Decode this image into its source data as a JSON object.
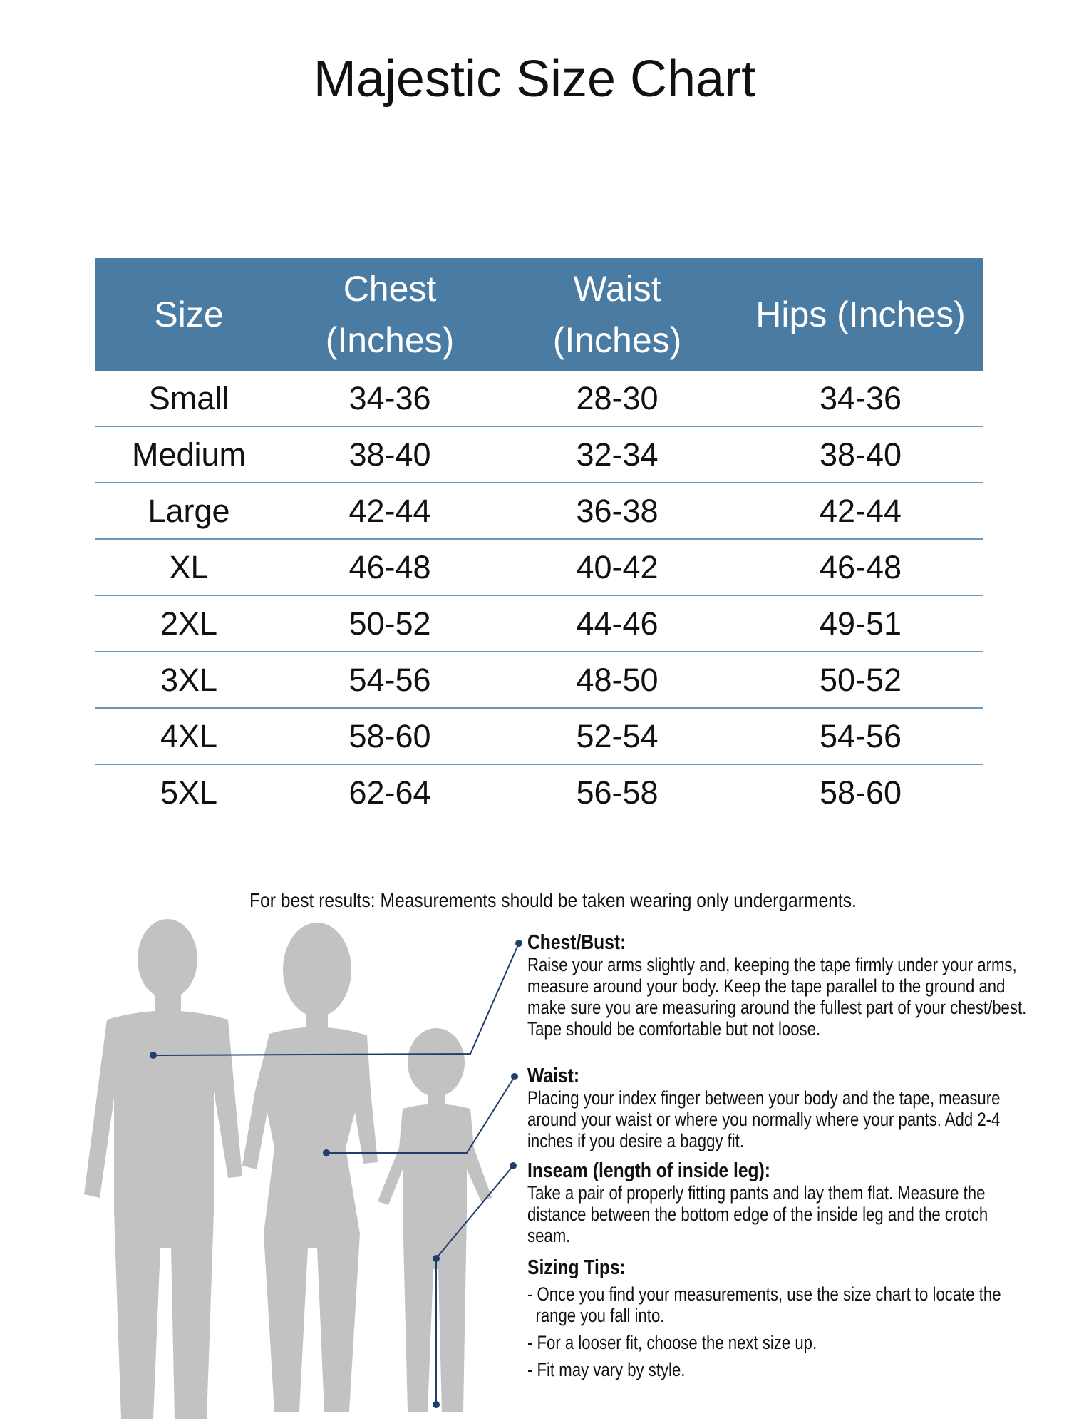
{
  "title": "Majestic Size Chart",
  "table": {
    "headers": {
      "size": "Size",
      "chest_1": "Chest",
      "chest_2": "(Inches)",
      "waist_1": "Waist",
      "waist_2": "(Inches)",
      "hips": "Hips (Inches)"
    },
    "rows": [
      {
        "size": "Small",
        "chest": "34-36",
        "waist": "28-30",
        "hips": "34-36"
      },
      {
        "size": "Medium",
        "chest": "38-40",
        "waist": "32-34",
        "hips": "38-40"
      },
      {
        "size": "Large",
        "chest": "42-44",
        "waist": "36-38",
        "hips": "42-44"
      },
      {
        "size": "XL",
        "chest": "46-48",
        "waist": "40-42",
        "hips": "46-48"
      },
      {
        "size": "2XL",
        "chest": "50-52",
        "waist": "44-46",
        "hips": "49-51"
      },
      {
        "size": "3XL",
        "chest": "54-56",
        "waist": "48-50",
        "hips": "50-52"
      },
      {
        "size": "4XL",
        "chest": "58-60",
        "waist": "52-54",
        "hips": "54-56"
      },
      {
        "size": "5XL",
        "chest": "62-64",
        "waist": "56-58",
        "hips": "58-60"
      }
    ],
    "colors": {
      "header_bg": "#4a7ba2",
      "divider": "#6b97bd"
    }
  },
  "guide": {
    "note": "For best results: Measurements should be taken wearing only undergarments.",
    "chest": {
      "heading": "Chest/Bust:",
      "text": "Raise your arms slightly and, keeping the tape firmly under your arms, measure around your body. Keep the tape parallel to the ground and make sure you are measuring around the fullest part of your chest/best. Tape should be comfortable but not loose."
    },
    "waist": {
      "heading": "Waist:",
      "text": "Placing your index finger between your body and the tape, measure around your waist or where you normally where your pants. Add 2-4 inches if you desire a baggy fit."
    },
    "inseam": {
      "heading": "Inseam (length of inside leg):",
      "text": "Take a pair of properly fitting pants and lay them flat. Measure the distance between the bottom edge of the inside leg and the crotch seam."
    },
    "tips": {
      "heading": "Sizing Tips:",
      "items": [
        "- Once you find your measurements, use the size chart to locate the range you fall into.",
        "- For a looser fit, choose the next size up.",
        "- Fit may vary by style."
      ]
    },
    "colors": {
      "silhouette": "#c2c2c2",
      "pointer": "#1f3e6b"
    }
  }
}
